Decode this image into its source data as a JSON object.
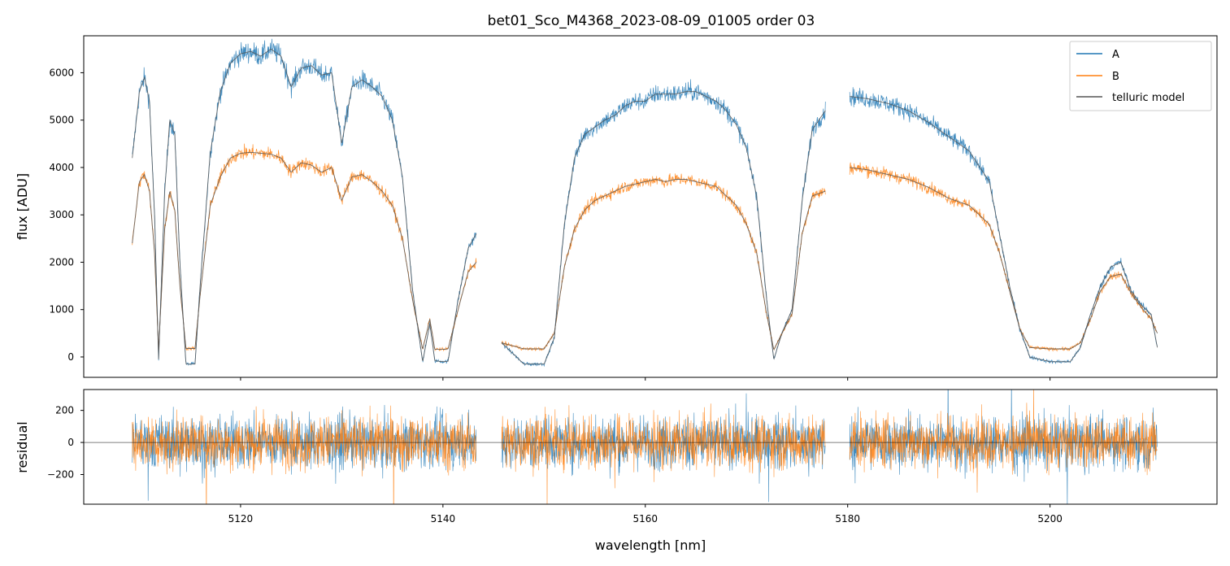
{
  "chart_data": [
    {
      "type": "line",
      "panel": "flux",
      "title": "bet01_Sco_M4368_2023-08-09_01005  order 03",
      "xlabel": "",
      "ylabel": "flux [ADU]",
      "xlim": [
        5104.5,
        5216.5
      ],
      "ylim": [
        -430,
        6780
      ],
      "yticks": [
        0,
        1000,
        2000,
        3000,
        4000,
        5000,
        6000
      ],
      "xticks": [
        5120,
        5140,
        5160,
        5180,
        5200
      ],
      "legend": "top-right",
      "grid": false,
      "segments": [
        [
          5109.3,
          5143.3
        ],
        [
          5145.8,
          5177.8
        ],
        [
          5180.2,
          5210.6
        ]
      ],
      "series": [
        {
          "name": "A",
          "color": "#1f77b4",
          "points": [
            [
              5109.3,
              4200
            ],
            [
              5110,
              5600
            ],
            [
              5110.5,
              5900
            ],
            [
              5111,
              5400
            ],
            [
              5111.5,
              3000
            ],
            [
              5111.9,
              -50
            ],
            [
              5112.5,
              3500
            ],
            [
              5113,
              5000
            ],
            [
              5113.5,
              4700
            ],
            [
              5114,
              2000
            ],
            [
              5114.6,
              -150
            ],
            [
              5115.5,
              -150
            ],
            [
              5116,
              1500
            ],
            [
              5117,
              4300
            ],
            [
              5118,
              5600
            ],
            [
              5119,
              6200
            ],
            [
              5120,
              6400
            ],
            [
              5121,
              6450
            ],
            [
              5122,
              6350
            ],
            [
              5123,
              6500
            ],
            [
              5124,
              6350
            ],
            [
              5125,
              5700
            ],
            [
              5126,
              6100
            ],
            [
              5127,
              6150
            ],
            [
              5128,
              5950
            ],
            [
              5129,
              6000
            ],
            [
              5130,
              4500
            ],
            [
              5131,
              5700
            ],
            [
              5132,
              5850
            ],
            [
              5133,
              5700
            ],
            [
              5134,
              5500
            ],
            [
              5135,
              5000
            ],
            [
              5136,
              3800
            ],
            [
              5137,
              1400
            ],
            [
              5138,
              -100
            ],
            [
              5138.7,
              700
            ],
            [
              5139.2,
              -80
            ],
            [
              5140,
              -100
            ],
            [
              5140.5,
              -90
            ],
            [
              5141.5,
              1200
            ],
            [
              5142.5,
              2300
            ],
            [
              5143.3,
              2600
            ],
            [
              5145.8,
              300
            ],
            [
              5148,
              -150
            ],
            [
              5150,
              -150
            ],
            [
              5151,
              400
            ],
            [
              5152,
              2800
            ],
            [
              5153,
              4200
            ],
            [
              5154,
              4700
            ],
            [
              5155,
              4850
            ],
            [
              5156,
              5000
            ],
            [
              5157,
              5100
            ],
            [
              5158,
              5300
            ],
            [
              5159,
              5400
            ],
            [
              5160,
              5400
            ],
            [
              5161,
              5550
            ],
            [
              5162,
              5550
            ],
            [
              5163,
              5550
            ],
            [
              5164,
              5600
            ],
            [
              5165,
              5600
            ],
            [
              5166,
              5500
            ],
            [
              5167,
              5400
            ],
            [
              5168,
              5200
            ],
            [
              5169,
              4900
            ],
            [
              5170,
              4400
            ],
            [
              5171,
              3400
            ],
            [
              5172,
              1200
            ],
            [
              5172.7,
              -50
            ],
            [
              5173.5,
              500
            ],
            [
              5174.5,
              1000
            ],
            [
              5175.5,
              3300
            ],
            [
              5176.5,
              4800
            ],
            [
              5177.8,
              5200
            ],
            [
              5180.2,
              5500
            ],
            [
              5182,
              5450
            ],
            [
              5184,
              5350
            ],
            [
              5186,
              5200
            ],
            [
              5188,
              4950
            ],
            [
              5190,
              4650
            ],
            [
              5192,
              4350
            ],
            [
              5194,
              3700
            ],
            [
              5195,
              2600
            ],
            [
              5196,
              1500
            ],
            [
              5197,
              600
            ],
            [
              5198,
              0
            ],
            [
              5200,
              -100
            ],
            [
              5202,
              -100
            ],
            [
              5203,
              200
            ],
            [
              5204,
              900
            ],
            [
              5205,
              1500
            ],
            [
              5206,
              1900
            ],
            [
              5207,
              2000
            ],
            [
              5208,
              1400
            ],
            [
              5209,
              1100
            ],
            [
              5210,
              900
            ],
            [
              5210.6,
              200
            ]
          ]
        },
        {
          "name": "B",
          "color": "#ff7f0e",
          "points": [
            [
              5109.3,
              2400
            ],
            [
              5110,
              3700
            ],
            [
              5110.5,
              3850
            ],
            [
              5111,
              3500
            ],
            [
              5111.5,
              2200
            ],
            [
              5111.9,
              150
            ],
            [
              5112.5,
              2700
            ],
            [
              5113,
              3500
            ],
            [
              5113.5,
              3100
            ],
            [
              5114,
              1500
            ],
            [
              5114.6,
              180
            ],
            [
              5115.5,
              180
            ],
            [
              5116,
              1300
            ],
            [
              5117,
              3200
            ],
            [
              5118,
              3800
            ],
            [
              5119,
              4200
            ],
            [
              5120,
              4300
            ],
            [
              5121,
              4320
            ],
            [
              5122,
              4300
            ],
            [
              5123,
              4280
            ],
            [
              5124,
              4200
            ],
            [
              5125,
              3900
            ],
            [
              5126,
              4100
            ],
            [
              5127,
              4050
            ],
            [
              5128,
              3900
            ],
            [
              5129,
              4000
            ],
            [
              5130,
              3300
            ],
            [
              5131,
              3800
            ],
            [
              5132,
              3850
            ],
            [
              5133,
              3700
            ],
            [
              5134,
              3500
            ],
            [
              5135,
              3200
            ],
            [
              5136,
              2500
            ],
            [
              5137,
              1200
            ],
            [
              5138,
              160
            ],
            [
              5138.7,
              800
            ],
            [
              5139.2,
              160
            ],
            [
              5140,
              160
            ],
            [
              5140.5,
              170
            ],
            [
              5141.5,
              1000
            ],
            [
              5142.5,
              1800
            ],
            [
              5143.3,
              2000
            ],
            [
              5145.8,
              300
            ],
            [
              5148,
              170
            ],
            [
              5150,
              170
            ],
            [
              5151,
              500
            ],
            [
              5152,
              1900
            ],
            [
              5153,
              2700
            ],
            [
              5154,
              3100
            ],
            [
              5155,
              3300
            ],
            [
              5156,
              3400
            ],
            [
              5157,
              3500
            ],
            [
              5158,
              3600
            ],
            [
              5159,
              3650
            ],
            [
              5160,
              3700
            ],
            [
              5161,
              3750
            ],
            [
              5162,
              3700
            ],
            [
              5163,
              3750
            ],
            [
              5164,
              3750
            ],
            [
              5165,
              3700
            ],
            [
              5166,
              3650
            ],
            [
              5167,
              3600
            ],
            [
              5168,
              3400
            ],
            [
              5169,
              3200
            ],
            [
              5170,
              2800
            ],
            [
              5171,
              2200
            ],
            [
              5172,
              900
            ],
            [
              5172.7,
              150
            ],
            [
              5173.5,
              500
            ],
            [
              5174.5,
              900
            ],
            [
              5175.5,
              2600
            ],
            [
              5176.5,
              3400
            ],
            [
              5177.8,
              3500
            ],
            [
              5180.2,
              4000
            ],
            [
              5182,
              3950
            ],
            [
              5184,
              3850
            ],
            [
              5186,
              3750
            ],
            [
              5188,
              3580
            ],
            [
              5190,
              3350
            ],
            [
              5192,
              3200
            ],
            [
              5194,
              2800
            ],
            [
              5195,
              2200
            ],
            [
              5196,
              1400
            ],
            [
              5197,
              600
            ],
            [
              5198,
              200
            ],
            [
              5200,
              170
            ],
            [
              5202,
              170
            ],
            [
              5203,
              300
            ],
            [
              5204,
              800
            ],
            [
              5205,
              1400
            ],
            [
              5206,
              1700
            ],
            [
              5207,
              1750
            ],
            [
              5208,
              1350
            ],
            [
              5209,
              1050
            ],
            [
              5210,
              800
            ],
            [
              5210.6,
              500
            ]
          ]
        },
        {
          "name": "telluric model",
          "color": "#555555"
        }
      ]
    },
    {
      "type": "line",
      "panel": "residual",
      "title": "",
      "xlabel": "wavelength [nm]",
      "ylabel": "residual",
      "xlim": [
        5104.5,
        5216.5
      ],
      "ylim": [
        -385,
        330
      ],
      "yticks": [
        -200,
        0,
        200
      ],
      "xticks": [
        5120,
        5140,
        5160,
        5180,
        5200
      ],
      "zero_line": 0,
      "approx_amplitude": 150,
      "segments": [
        [
          5109.3,
          5143.3
        ],
        [
          5145.8,
          5177.8
        ],
        [
          5180.2,
          5210.6
        ]
      ]
    }
  ]
}
